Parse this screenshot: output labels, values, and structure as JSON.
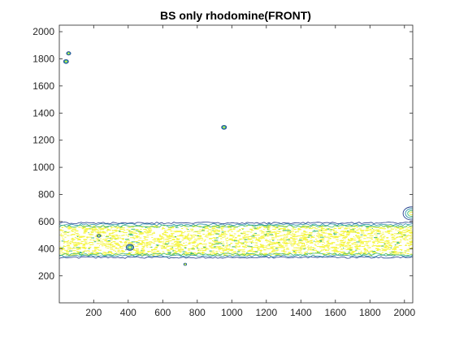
{
  "chart_data": {
    "type": "contour",
    "title": "BS only rhodomine(FRONT)",
    "xlabel": "",
    "ylabel": "",
    "xlim": [
      1,
      2048
    ],
    "ylim": [
      1,
      2048
    ],
    "x_ticks": [
      200,
      400,
      600,
      800,
      1000,
      1200,
      1400,
      1600,
      1800,
      2000
    ],
    "y_ticks": [
      200,
      400,
      600,
      800,
      1000,
      1200,
      1400,
      1600,
      1800,
      2000
    ],
    "grid": false,
    "legend": "none",
    "band": {
      "x_range": [
        1,
        2048
      ],
      "y_low": 335,
      "y_high": 590
    },
    "spots": [
      {
        "x": 55,
        "y": 1840,
        "r": 12
      },
      {
        "x": 40,
        "y": 1780,
        "r": 14
      },
      {
        "x": 955,
        "y": 1295,
        "r": 14
      },
      {
        "x": 410,
        "y": 410,
        "r": 22
      },
      {
        "x": 230,
        "y": 495,
        "r": 10
      },
      {
        "x": 730,
        "y": 285,
        "r": 8
      },
      {
        "x": 2040,
        "y": 660,
        "r": 48
      }
    ],
    "level_colors": [
      "#1f3b8c",
      "#2a8fa8",
      "#3cba74",
      "#f5f540"
    ]
  }
}
